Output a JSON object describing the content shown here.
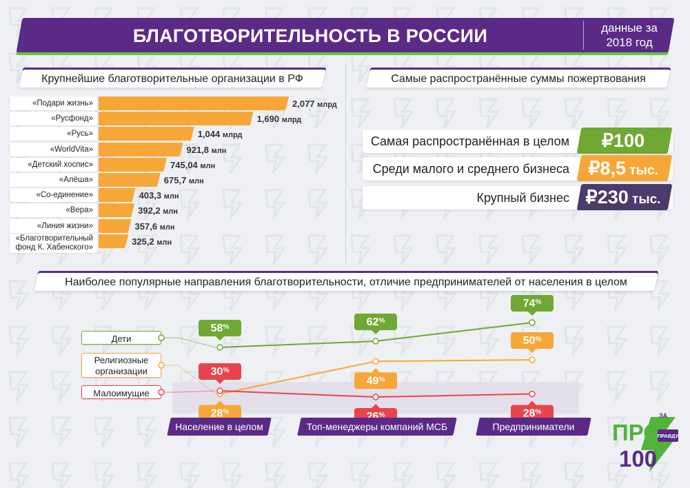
{
  "header": {
    "title": "БЛАГОТВОРИТЕЛЬНОСТЬ В РОССИИ",
    "date_line1": "данные за",
    "date_line2": "2018 год"
  },
  "colors": {
    "purple": "#5b2a86",
    "green": "#6fa832",
    "orange": "#f7a738",
    "red": "#e8444c",
    "dark": "#4b3a6a"
  },
  "sections": {
    "orgs_title": "Крупнейшие благотворительные организации в РФ",
    "sums_title": "Самые распространённые суммы пожертвования",
    "directions_title": "Наиболее популярные направления благотворительности, отличие предпринимателей от населения в целом"
  },
  "chart_data": [
    {
      "type": "bar",
      "orientation": "horizontal",
      "title": "Крупнейшие благотворительные организации в РФ",
      "categories": [
        "«Подари жизнь»",
        "«Русфонд»",
        "«Русь»",
        "«WorldVita»",
        "«Детский хоспис»",
        "«Алёша»",
        "«Со-единение»",
        "«Вера»",
        "«Линия жизни»",
        "«Благотворительный фонд К. Хабенского»"
      ],
      "category_lines": [
        [
          "«Подари жизнь»"
        ],
        [
          "«Русфонд»"
        ],
        [
          "«Русь»"
        ],
        [
          "«WorldVita»"
        ],
        [
          "«Детский хоспис»"
        ],
        [
          "«Алёша»"
        ],
        [
          "«Со-единение»"
        ],
        [
          "«Вера»"
        ],
        [
          "«Линия жизни»"
        ],
        [
          "«Благотворительный",
          "фонд К. Хабенского»"
        ]
      ],
      "values_mln": [
        2077,
        1690,
        1044,
        921.8,
        745.04,
        675.7,
        403.3,
        392.2,
        357.6,
        325.2
      ],
      "value_labels": [
        {
          "num": "2,077",
          "unit": "млрд"
        },
        {
          "num": "1,690",
          "unit": "млрд"
        },
        {
          "num": "1,044",
          "unit": "млрд"
        },
        {
          "num": "921,8",
          "unit": "млн"
        },
        {
          "num": "745,04",
          "unit": "млн"
        },
        {
          "num": "675,7",
          "unit": "млн"
        },
        {
          "num": "403,3",
          "unit": "млн"
        },
        {
          "num": "392,2",
          "unit": "млн"
        },
        {
          "num": "357,6",
          "unit": "млн"
        },
        {
          "num": "325,2",
          "unit": "млн"
        }
      ],
      "xlim": [
        0,
        2077
      ]
    },
    {
      "type": "line",
      "title": "Наиболее популярные направления благотворительности, отличие предпринимателей от населения в целом",
      "categories": [
        "Население в целом",
        "Топ-менеджеры компаний МСБ",
        "Предприниматели"
      ],
      "unit": "%",
      "ylim": [
        20,
        80
      ],
      "series": [
        {
          "name": "Дети",
          "color": "#6fa832",
          "values": [
            58,
            62,
            74
          ],
          "label_pos": [
            "above",
            "above",
            "above"
          ]
        },
        {
          "name": "Религиозные организации",
          "color": "#f7a738",
          "values": [
            28,
            49,
            50
          ],
          "label_pos": [
            "below",
            "below",
            "above"
          ]
        },
        {
          "name": "Малоимущие",
          "color": "#e8444c",
          "values": [
            30,
            26,
            28
          ],
          "label_pos": [
            "above",
            "below",
            "below"
          ]
        }
      ]
    }
  ],
  "donations": [
    {
      "label": "Самая распространённая в целом",
      "value": "₽100",
      "suffix": "",
      "color": "#6fa832"
    },
    {
      "label": "Среди малого и среднего бизнеса",
      "value": "₽8,5",
      "suffix": " тыс.",
      "color": "#f7a738"
    },
    {
      "label": "Крупный бизнес",
      "value": "₽230",
      "suffix": " тыс.",
      "color": "#4b3a6a"
    }
  ],
  "legend": {
    "children": "Дети",
    "religious_1": "Религиозные",
    "religious_2": "организации",
    "poor": "Малоимущие"
  },
  "logo": {
    "line1": "ПРО",
    "line2": "100",
    "badge_top": "ЗА",
    "badge_mid": "ПРАВДУ"
  }
}
